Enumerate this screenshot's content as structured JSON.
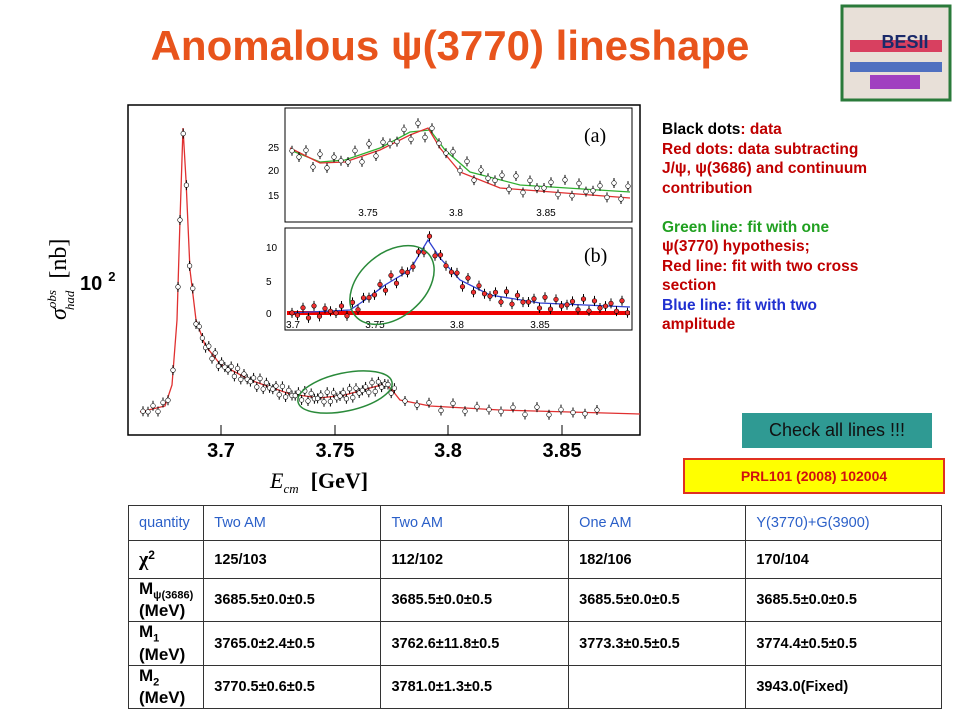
{
  "header": {
    "title": "Anomalous ψ(3770) lineshape",
    "logo": "BESII"
  },
  "plot": {
    "y_label": "σ",
    "y_label_sup": "obs",
    "y_label_sub": "had",
    "y_unit": "[nb]",
    "y_scale": "10",
    "y_scale_sup": "2",
    "x_label": "E",
    "x_label_sub": "cm",
    "x_unit": "[GeV]",
    "x_ticks": [
      "3.7",
      "3.75",
      "3.8",
      "3.85"
    ],
    "inset_a": {
      "label": "(a)",
      "y_ticks": [
        "25",
        "20",
        "15"
      ],
      "x_ticks": [
        "3.75",
        "3.8",
        "3.85"
      ]
    },
    "inset_b": {
      "label": "(b)",
      "y_ticks": [
        "10",
        "5",
        "0"
      ],
      "x_ticks": [
        "3.7",
        "3.75",
        "3.8",
        "3.85"
      ]
    }
  },
  "notes": [
    {
      "key": "Black dots",
      "text": ": data"
    },
    {
      "key": "Red dots",
      "text": ": data subtracting"
    },
    {
      "key": null,
      "text": "J/ψ, ψ(3686) and continuum"
    },
    {
      "key": null,
      "text": "contribution"
    },
    {
      "key": "Green line",
      "text": ": fit with one"
    },
    {
      "key": null,
      "text": "ψ(3770) hypothesis;"
    },
    {
      "key": "Red line",
      "text": ": fit with two cross"
    },
    {
      "key": null,
      "text": "section"
    },
    {
      "key": "Blue line",
      "text": ": fit with two"
    },
    {
      "key": null,
      "text": "amplitude"
    }
  ],
  "callout": "Check all lines !!!",
  "reference": "PRL101 (2008) 102004",
  "table": {
    "header": [
      "quantity",
      "Two AM",
      "Two AM",
      "One AM",
      "Y(3770)+G(3900)"
    ],
    "rows": [
      [
        {
          "text": "χ",
          "sup": "2"
        },
        "125/103",
        "112/102",
        "182/106",
        "170/104"
      ],
      [
        {
          "text": "M",
          "sub": "ψ(3686)",
          "after": " (MeV)"
        },
        "3685.5±0.0±0.5",
        "3685.5±0.0±0.5",
        "3685.5±0.0±0.5",
        "3685.5±0.0±0.5"
      ],
      [
        {
          "text": "M",
          "sub": "1",
          "after": " (MeV)"
        },
        "3765.0±2.4±0.5",
        "3762.6±11.8±0.5",
        "3773.3±0.5±0.5",
        "3774.4±0.5±0.5"
      ],
      [
        {
          "text": "M",
          "sub": "2",
          "after": " (MeV)"
        },
        "3770.5±0.6±0.5",
        "3781.0±1.3±0.5",
        null,
        "3943.0(Fixed)"
      ]
    ]
  }
}
